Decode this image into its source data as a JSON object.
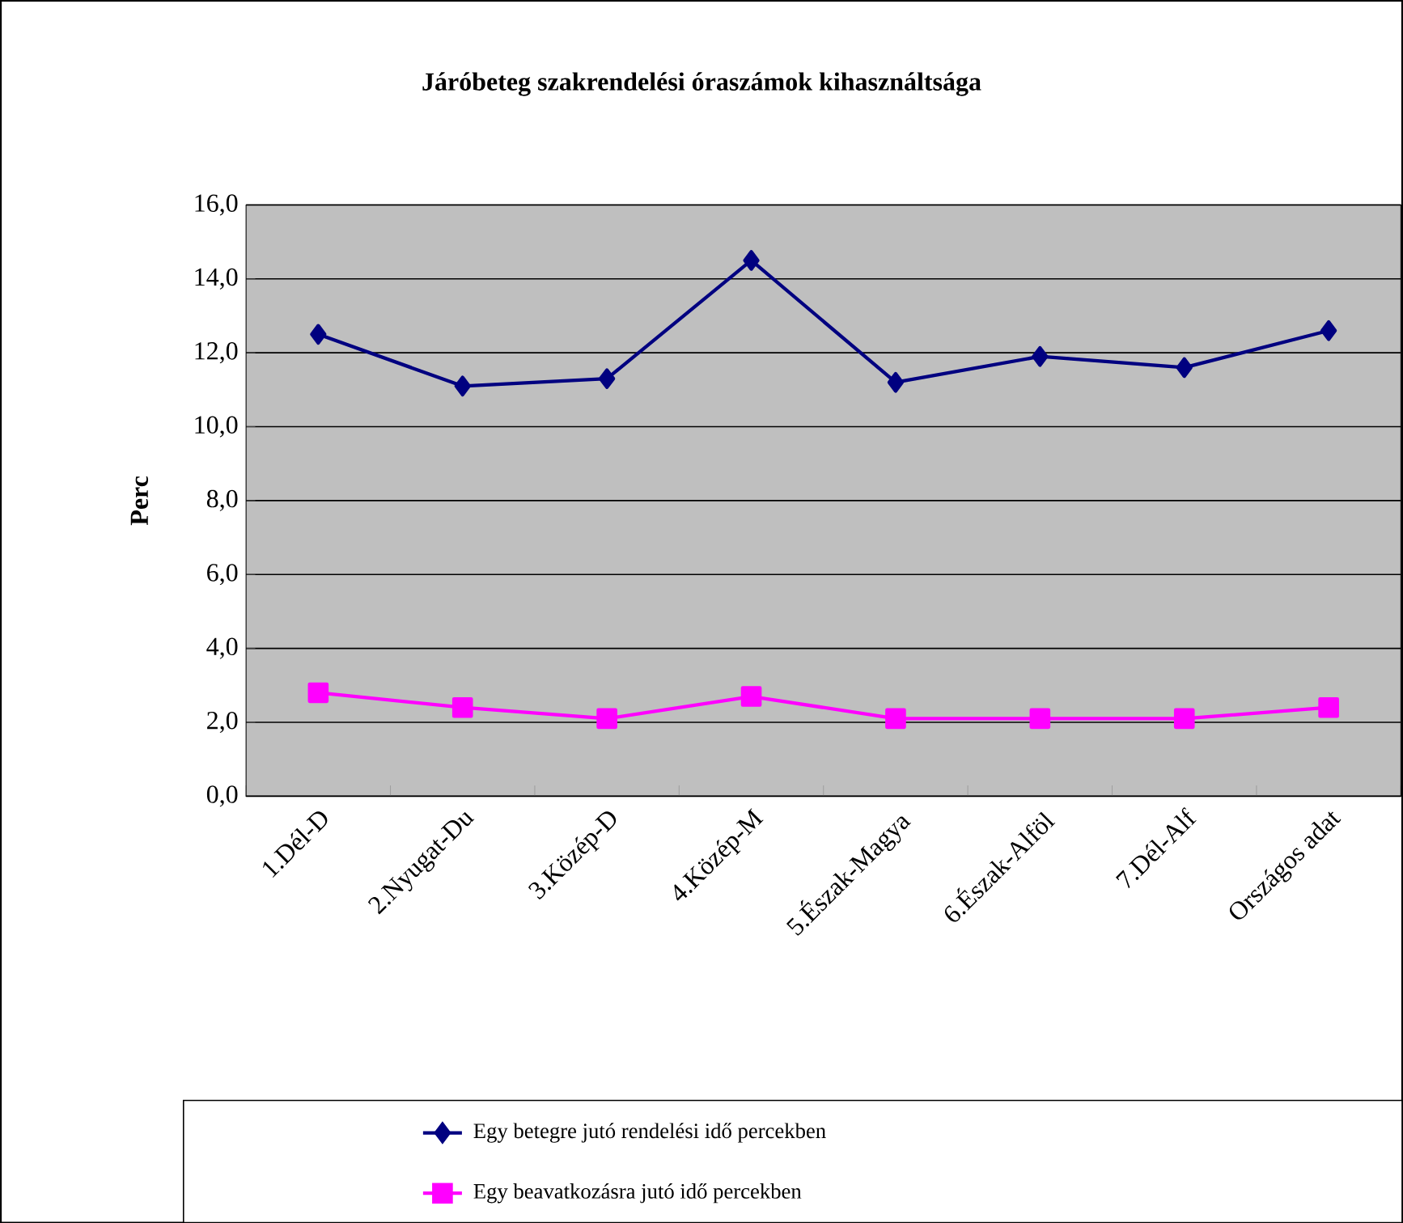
{
  "chart_data": {
    "type": "line",
    "title": "Járóbeteg szakrendelési óraszámok kihasználtsága",
    "ylabel": "Perc",
    "categories": [
      "1.Dél-D",
      "2.Nyugat-Du",
      "3.Közép-D",
      "4.Közép-M",
      "5.Észak-Magya",
      "6.Észak-Alföl",
      "7.Dél-Alf",
      "Országos adat"
    ],
    "series": [
      {
        "name": "Egy betegre jutó rendelési idő percekben",
        "color": "#000080",
        "marker": "diamond",
        "values": [
          12.5,
          11.1,
          11.3,
          14.5,
          11.2,
          11.9,
          11.6,
          12.6
        ]
      },
      {
        "name": "Egy beavatkozásra jutó idő percekben",
        "color": "#ff00ff",
        "marker": "square",
        "values": [
          2.8,
          2.4,
          2.1,
          2.7,
          2.1,
          2.1,
          2.1,
          2.4
        ]
      }
    ],
    "ylim": [
      0,
      16
    ],
    "yticks": [
      {
        "value": 0,
        "label": "0,0"
      },
      {
        "value": 2,
        "label": "2,0"
      },
      {
        "value": 4,
        "label": "4,0"
      },
      {
        "value": 6,
        "label": "6,0"
      },
      {
        "value": 8,
        "label": "8,0"
      },
      {
        "value": 10,
        "label": "10,0"
      },
      {
        "value": 12,
        "label": "12,0"
      },
      {
        "value": 14,
        "label": "14,0"
      },
      {
        "value": 16,
        "label": "16,0"
      }
    ],
    "grid": "y",
    "legend": "bottom",
    "line_style": "solid"
  }
}
